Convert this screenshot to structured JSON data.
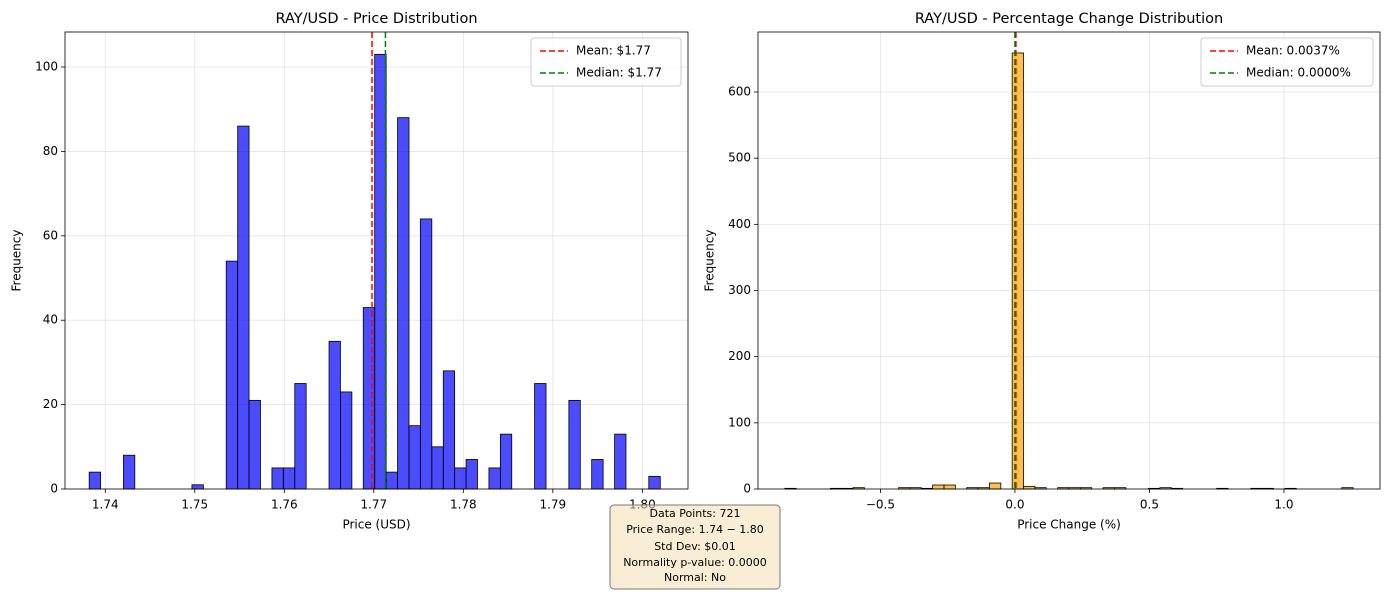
{
  "chart_data": [
    {
      "type": "histogram",
      "title": "RAY/USD - Price Distribution",
      "xlabel": "Price (USD)",
      "ylabel": "Frequency",
      "color": "blue",
      "alpha": 0.7,
      "bins": [
        1.7382,
        1.73948,
        1.74075,
        1.74203,
        1.7433,
        1.74458,
        1.74586,
        1.74713,
        1.74841,
        1.74968,
        1.75096,
        1.75224,
        1.75351,
        1.75479,
        1.75606,
        1.75734,
        1.75862,
        1.75989,
        1.76117,
        1.76244,
        1.76372,
        1.765,
        1.76627,
        1.76755,
        1.76882,
        1.7701,
        1.77138,
        1.77265,
        1.77393,
        1.7752,
        1.77648,
        1.77776,
        1.77903,
        1.78031,
        1.78158,
        1.78286,
        1.78414,
        1.78541,
        1.78669,
        1.78796,
        1.78924,
        1.79052,
        1.79179,
        1.79307,
        1.79434,
        1.79562,
        1.7969,
        1.79817,
        1.79945,
        1.80072,
        1.802
      ],
      "values": [
        4,
        0,
        0,
        8,
        0,
        0,
        0,
        0,
        0,
        1,
        0,
        0,
        54,
        86,
        21,
        0,
        5,
        5,
        25,
        0,
        0,
        35,
        23,
        0,
        43,
        103,
        4,
        88,
        15,
        64,
        10,
        28,
        5,
        7,
        0,
        5,
        13,
        0,
        0,
        25,
        0,
        0,
        21,
        0,
        7,
        0,
        13,
        0,
        0,
        3
      ],
      "vlines": [
        {
          "name": "Mean: $1.77",
          "value": 1.7698,
          "color": "red"
        },
        {
          "name": "Median: $1.77",
          "value": 1.7713,
          "color": "green"
        }
      ],
      "xlim": [
        1.7355,
        1.8051
      ],
      "xticks": [
        1.74,
        1.75,
        1.76,
        1.77,
        1.78,
        1.79,
        {
          "value": 1.8,
          "label": "1.80"
        }
      ],
      "ylim": [
        0,
        108.3
      ],
      "yticks": [
        0,
        20,
        40,
        60,
        80,
        100
      ],
      "grid": true,
      "legend": "upper right"
    },
    {
      "type": "histogram",
      "title": "RAY/USD - Percentage Change Distribution",
      "xlabel": "Price Change (%)",
      "ylabel": "Frequency",
      "color": "orange",
      "alpha": 0.7,
      "bins": [
        -0.855,
        -0.8128,
        -0.7705,
        -0.7283,
        -0.686,
        -0.6438,
        -0.6016,
        -0.5593,
        -0.5171,
        -0.4748,
        -0.4326,
        -0.3904,
        -0.3481,
        -0.3059,
        -0.2636,
        -0.2214,
        -0.1792,
        -0.1369,
        -0.0947,
        -0.0524,
        -0.0102,
        0.032,
        0.0743,
        0.1165,
        0.1588,
        0.201,
        0.2432,
        0.2855,
        0.3277,
        0.37,
        0.4122,
        0.4544,
        0.4967,
        0.5389,
        0.5812,
        0.6234,
        0.6656,
        0.7079,
        0.7501,
        0.7924,
        0.8346,
        0.8768,
        0.9191,
        0.9613,
        1.0036,
        1.0458,
        1.088,
        1.1303,
        1.1725,
        1.2148,
        1.257
      ],
      "values": [
        1,
        0,
        0,
        0,
        1,
        1,
        2,
        0,
        0,
        0,
        2,
        2,
        1,
        6,
        6,
        0,
        2,
        2,
        9,
        0,
        659,
        4,
        2,
        0,
        2,
        2,
        2,
        0,
        2,
        2,
        0,
        0,
        1,
        2,
        1,
        0,
        0,
        0,
        1,
        0,
        0,
        1,
        1,
        0,
        1,
        0,
        0,
        0,
        0,
        2
      ],
      "vlines": [
        {
          "name": "Mean: 0.0037%",
          "value": 0.0037,
          "color": "red"
        },
        {
          "name": "Median: 0.0000%",
          "value": 0,
          "color": "green"
        }
      ],
      "xlim": [
        -0.955,
        1.357
      ],
      "xticks": [
        {
          "value": -0.5,
          "label": "−0.5"
        },
        {
          "value": 0,
          "label": "0.0"
        },
        {
          "value": 0.5,
          "label": "0.5"
        },
        {
          "value": 1,
          "label": "1.0"
        }
      ],
      "ylim": [
        0,
        690.7
      ],
      "yticks": [
        0,
        100,
        200,
        300,
        400,
        500,
        600
      ],
      "grid": true,
      "legend": "upper right"
    }
  ],
  "annotation": {
    "lines": [
      "Data Points: 721",
      "Price Range: 1.74 − 1.80",
      "Std Dev: $0.01",
      "Normality p-value: 0.0000",
      "Normal: No"
    ]
  }
}
